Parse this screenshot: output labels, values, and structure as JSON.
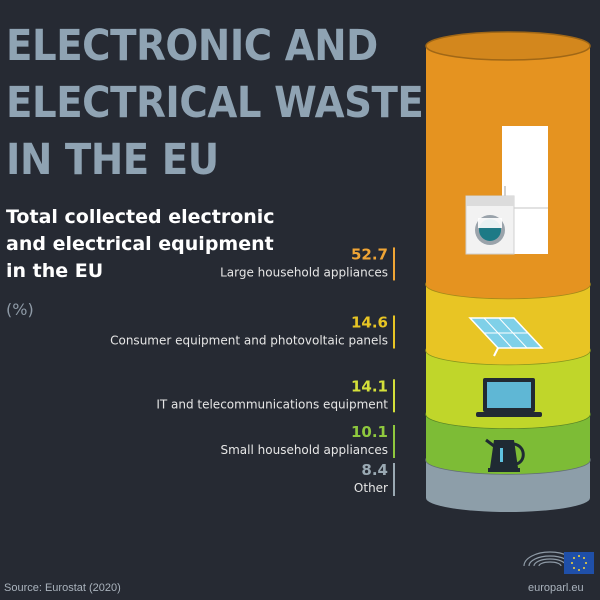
{
  "header": {
    "title_lines": [
      "ELECTRONIC AND",
      "ELECTRICAL WASTE",
      "IN THE EU"
    ],
    "subtitle_lines": [
      "Total collected electronic",
      "and electrical equipment",
      "in the EU"
    ],
    "unit": "(%)"
  },
  "chart_data": {
    "type": "bar",
    "orientation": "stacked-cylinder",
    "categories": [
      "Large household appliances",
      "Consumer equipment and photovoltaic panels",
      "IT and telecommunications equipment",
      "Small household appliances",
      "Other"
    ],
    "values": [
      52.7,
      14.6,
      14.1,
      10.1,
      8.4
    ],
    "value_labels": [
      "52.7",
      "14.6",
      "14.1",
      "10.1",
      "8.4"
    ],
    "colors": [
      "#e59320",
      "#e8c524",
      "#c0d62a",
      "#7dbc36",
      "#8d9ea9"
    ],
    "label_colors": [
      "#f0a535",
      "#e8c524",
      "#d4e03a",
      "#8fc83e",
      "#9aa9b3"
    ],
    "icons": [
      "fridge-washer-icon",
      "solar-panel-icon",
      "laptop-icon",
      "kettle-icon",
      ""
    ]
  },
  "footer": {
    "source": "Source: Eurostat (2020)",
    "site": "europarl.eu"
  }
}
